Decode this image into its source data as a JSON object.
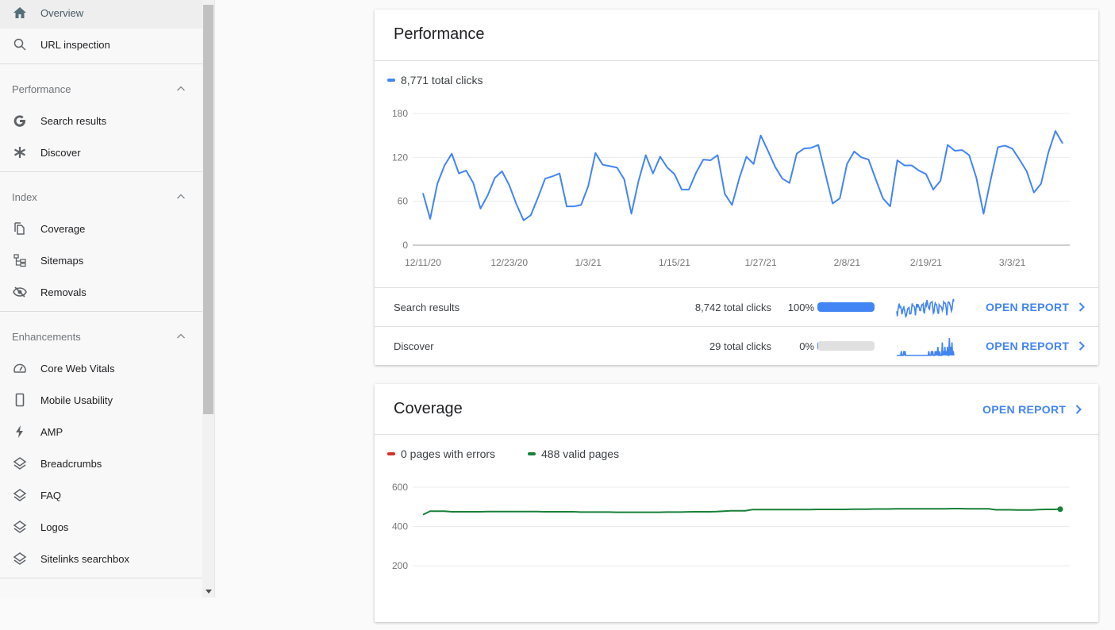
{
  "sidebar": {
    "items": [
      {
        "label": "Overview",
        "icon": "home-icon",
        "active": true
      },
      {
        "label": "URL inspection",
        "icon": "search-icon"
      }
    ],
    "sections": [
      {
        "title": "Performance",
        "items": [
          {
            "label": "Search results",
            "icon": "google-g-icon"
          },
          {
            "label": "Discover",
            "icon": "asterisk-icon"
          }
        ]
      },
      {
        "title": "Index",
        "items": [
          {
            "label": "Coverage",
            "icon": "copy-file-icon"
          },
          {
            "label": "Sitemaps",
            "icon": "sitemap-icon"
          },
          {
            "label": "Removals",
            "icon": "eye-off-icon"
          }
        ]
      },
      {
        "title": "Enhancements",
        "items": [
          {
            "label": "Core Web Vitals",
            "icon": "speedometer-icon"
          },
          {
            "label": "Mobile Usability",
            "icon": "phone-icon"
          },
          {
            "label": "AMP",
            "icon": "bolt-icon"
          },
          {
            "label": "Breadcrumbs",
            "icon": "layers-icon"
          },
          {
            "label": "FAQ",
            "icon": "layers-icon"
          },
          {
            "label": "Logos",
            "icon": "layers-icon"
          },
          {
            "label": "Sitelinks searchbox",
            "icon": "layers-icon"
          }
        ]
      }
    ]
  },
  "performance": {
    "title": "Performance",
    "legend": "8,771 total clicks",
    "rows": [
      {
        "name": "Search results",
        "clicks": "8,742 total clicks",
        "pct": "100%",
        "pct_value": 100,
        "open": "OPEN REPORT",
        "sparkline": [
          71,
          36,
          84,
          109,
          125,
          98,
          102,
          85,
          50,
          68,
          92,
          101,
          82,
          56,
          34,
          41,
          65,
          91,
          94,
          98,
          53,
          53,
          55,
          81,
          126,
          110,
          108,
          106,
          90,
          43,
          88,
          123,
          98,
          121,
          106,
          97,
          76,
          76,
          99,
          117,
          116,
          123,
          70,
          55,
          91,
          121,
          111,
          150,
          129,
          107,
          91,
          85,
          125,
          132,
          133,
          137,
          97,
          57,
          64,
          111,
          128,
          120,
          117,
          90,
          64,
          53,
          116,
          109,
          109,
          102,
          97,
          76,
          88,
          137,
          129,
          130,
          123,
          92,
          43,
          90,
          134,
          136,
          132,
          117,
          101,
          72,
          84,
          126,
          156,
          139
        ]
      },
      {
        "name": "Discover",
        "clicks": "29 total clicks",
        "pct": "0%",
        "pct_value": 0,
        "open": "OPEN REPORT",
        "sparkline": [
          0,
          0,
          0,
          0,
          0,
          0,
          0,
          1,
          0,
          0,
          0,
          1,
          0,
          1,
          0,
          0,
          0,
          0,
          0,
          0,
          0,
          0,
          0,
          0,
          0,
          0,
          0,
          0,
          0,
          0,
          0,
          0,
          0,
          0,
          0,
          0,
          0,
          0,
          0,
          0,
          0,
          0,
          0,
          0,
          0,
          0,
          0,
          0,
          0,
          0,
          1,
          0,
          0,
          0,
          1,
          0,
          1,
          0,
          0,
          0,
          1,
          0,
          1,
          0,
          2,
          0,
          0,
          1,
          0,
          0,
          0,
          3,
          0,
          1,
          0,
          2,
          0,
          1,
          0,
          2,
          0,
          0,
          4,
          0,
          2,
          0,
          3,
          0,
          1,
          0
        ]
      }
    ]
  },
  "coverage": {
    "title": "Coverage",
    "open": "OPEN REPORT",
    "legend_errors": "0 pages with errors",
    "legend_valid": "488 valid pages"
  },
  "colors": {
    "clicks": "#4285f4",
    "errors": "#d93025",
    "valid": "#188038",
    "accent": "#4285f4"
  },
  "chart_data": [
    {
      "type": "line",
      "title": "",
      "x_start": "12/11/20",
      "x_end": "3/10/21",
      "x_step": "1 day",
      "xticks": [
        "12/11/20",
        "12/23/20",
        "1/3/21",
        "1/15/21",
        "1/27/21",
        "2/8/21",
        "2/19/21",
        "3/3/21"
      ],
      "xtick_index": [
        0,
        12,
        23,
        35,
        47,
        59,
        70,
        82
      ],
      "yticks": [
        0,
        60,
        120,
        180
      ],
      "ylim": [
        0,
        180
      ],
      "grid": true,
      "series": [
        {
          "name": "8,771 total clicks",
          "color": "#4285f4",
          "values": [
            71,
            36,
            84,
            109,
            125,
            98,
            102,
            85,
            50,
            68,
            92,
            101,
            82,
            56,
            34,
            41,
            65,
            91,
            94,
            98,
            53,
            53,
            55,
            81,
            126,
            110,
            108,
            106,
            90,
            43,
            88,
            123,
            98,
            121,
            106,
            97,
            76,
            76,
            99,
            117,
            116,
            123,
            70,
            55,
            91,
            121,
            111,
            150,
            129,
            107,
            91,
            85,
            125,
            132,
            133,
            137,
            97,
            57,
            64,
            111,
            128,
            120,
            117,
            90,
            64,
            53,
            116,
            109,
            109,
            102,
            97,
            76,
            88,
            137,
            129,
            130,
            123,
            92,
            43,
            90,
            134,
            136,
            132,
            117,
            101,
            72,
            84,
            126,
            156,
            139
          ]
        }
      ]
    },
    {
      "type": "line",
      "title": "",
      "yticks": [
        200,
        400,
        600
      ],
      "ylim": [
        0,
        600
      ],
      "grid": true,
      "series": [
        {
          "name": "0 pages with errors",
          "color": "#d93025",
          "values": [
            0
          ]
        },
        {
          "name": "488 valid pages",
          "color": "#188038",
          "values": [
            460,
            478,
            478,
            478,
            475,
            475,
            475,
            475,
            475,
            476,
            476,
            476,
            476,
            476,
            476,
            476,
            476,
            475,
            475,
            475,
            475,
            475,
            473,
            473,
            473,
            473,
            473,
            472,
            472,
            472,
            472,
            472,
            472,
            472,
            473,
            473,
            473,
            474,
            475,
            475,
            475,
            476,
            478,
            480,
            480,
            480,
            486,
            486,
            486,
            486,
            486,
            486,
            486,
            486,
            486,
            487,
            487,
            487,
            487,
            487,
            488,
            488,
            488,
            489,
            489,
            489,
            490,
            490,
            490,
            490,
            490,
            490,
            490,
            490,
            491,
            491,
            490,
            490,
            490,
            490,
            485,
            485,
            485,
            484,
            484,
            484,
            486,
            487,
            487,
            488
          ]
        }
      ]
    }
  ]
}
